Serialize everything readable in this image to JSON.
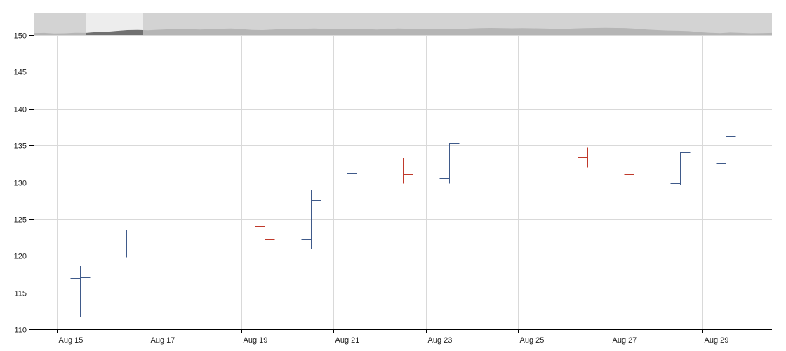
{
  "chart_data": {
    "type": "ohlc",
    "title": "",
    "xlabel": "",
    "ylabel": "",
    "ylim": [
      110,
      150
    ],
    "xlim": [
      "2014-08-14T12:00",
      "2014-08-30T12:00"
    ],
    "grid": true,
    "legend": "none",
    "y_ticks": [
      110,
      115,
      120,
      125,
      130,
      135,
      140,
      145,
      150
    ],
    "x_ticks": [
      {
        "date": "2014-08-15",
        "label": "Aug 15"
      },
      {
        "date": "2014-08-17",
        "label": "Aug 17"
      },
      {
        "date": "2014-08-19",
        "label": "Aug 19"
      },
      {
        "date": "2014-08-21",
        "label": "Aug 21"
      },
      {
        "date": "2014-08-23",
        "label": "Aug 23"
      },
      {
        "date": "2014-08-25",
        "label": "Aug 25"
      },
      {
        "date": "2014-08-27",
        "label": "Aug 27"
      },
      {
        "date": "2014-08-29",
        "label": "Aug 29"
      }
    ],
    "colors": {
      "increasing": "#3f5a8a",
      "decreasing": "#c0392b",
      "grid": "#d9d9d9",
      "navigator_bg": "#d3d3d3",
      "navigator_area": "#b5b5b5",
      "navigator_window": "#ededed",
      "navigator_window_area": "#707070"
    },
    "series": [
      {
        "date": "2014-08-15",
        "open": 117.0,
        "high": 118.6,
        "low": 111.6,
        "close": 117.1
      },
      {
        "date": "2014-08-16",
        "open": 122.0,
        "high": 123.5,
        "low": 119.8,
        "close": 122.0
      },
      {
        "date": "2014-08-19",
        "open": 124.0,
        "high": 124.5,
        "low": 120.5,
        "close": 122.2
      },
      {
        "date": "2014-08-20",
        "open": 122.2,
        "high": 129.0,
        "low": 121.0,
        "close": 127.6
      },
      {
        "date": "2014-08-21",
        "open": 131.2,
        "high": 132.6,
        "low": 130.3,
        "close": 132.5
      },
      {
        "date": "2014-08-22",
        "open": 133.2,
        "high": 133.3,
        "low": 129.8,
        "close": 131.1
      },
      {
        "date": "2014-08-23",
        "open": 130.5,
        "high": 135.4,
        "low": 129.8,
        "close": 135.3
      },
      {
        "date": "2014-08-26",
        "open": 133.4,
        "high": 134.7,
        "low": 132.0,
        "close": 132.2
      },
      {
        "date": "2014-08-27",
        "open": 131.1,
        "high": 132.5,
        "low": 126.8,
        "close": 126.8
      },
      {
        "date": "2014-08-28",
        "open": 129.9,
        "high": 134.1,
        "low": 129.6,
        "close": 134.1
      },
      {
        "date": "2014-08-29",
        "open": 132.6,
        "high": 138.2,
        "low": 132.5,
        "close": 136.3
      }
    ],
    "navigator": {
      "range_start": "2014-08-15",
      "range_end": "2014-08-30",
      "profile": [
        0.2,
        0.22,
        0.16,
        0.18,
        0.24,
        0.22,
        0.3,
        0.33,
        0.42,
        0.5,
        0.52,
        0.48,
        0.54,
        0.58,
        0.62,
        0.6,
        0.56,
        0.6,
        0.64,
        0.66,
        0.6,
        0.52,
        0.5,
        0.56,
        0.62,
        0.58,
        0.64,
        0.66,
        0.62,
        0.58,
        0.62,
        0.64,
        0.6,
        0.56,
        0.6,
        0.66,
        0.64,
        0.6,
        0.62,
        0.64,
        0.58,
        0.6,
        0.66,
        0.7,
        0.72,
        0.7,
        0.68,
        0.7,
        0.68,
        0.66,
        0.64,
        0.62,
        0.66,
        0.7,
        0.72,
        0.73,
        0.72,
        0.7,
        0.64,
        0.56,
        0.5,
        0.46,
        0.44,
        0.4,
        0.3,
        0.24,
        0.2,
        0.26,
        0.22,
        0.18,
        0.2,
        0.22
      ]
    }
  }
}
